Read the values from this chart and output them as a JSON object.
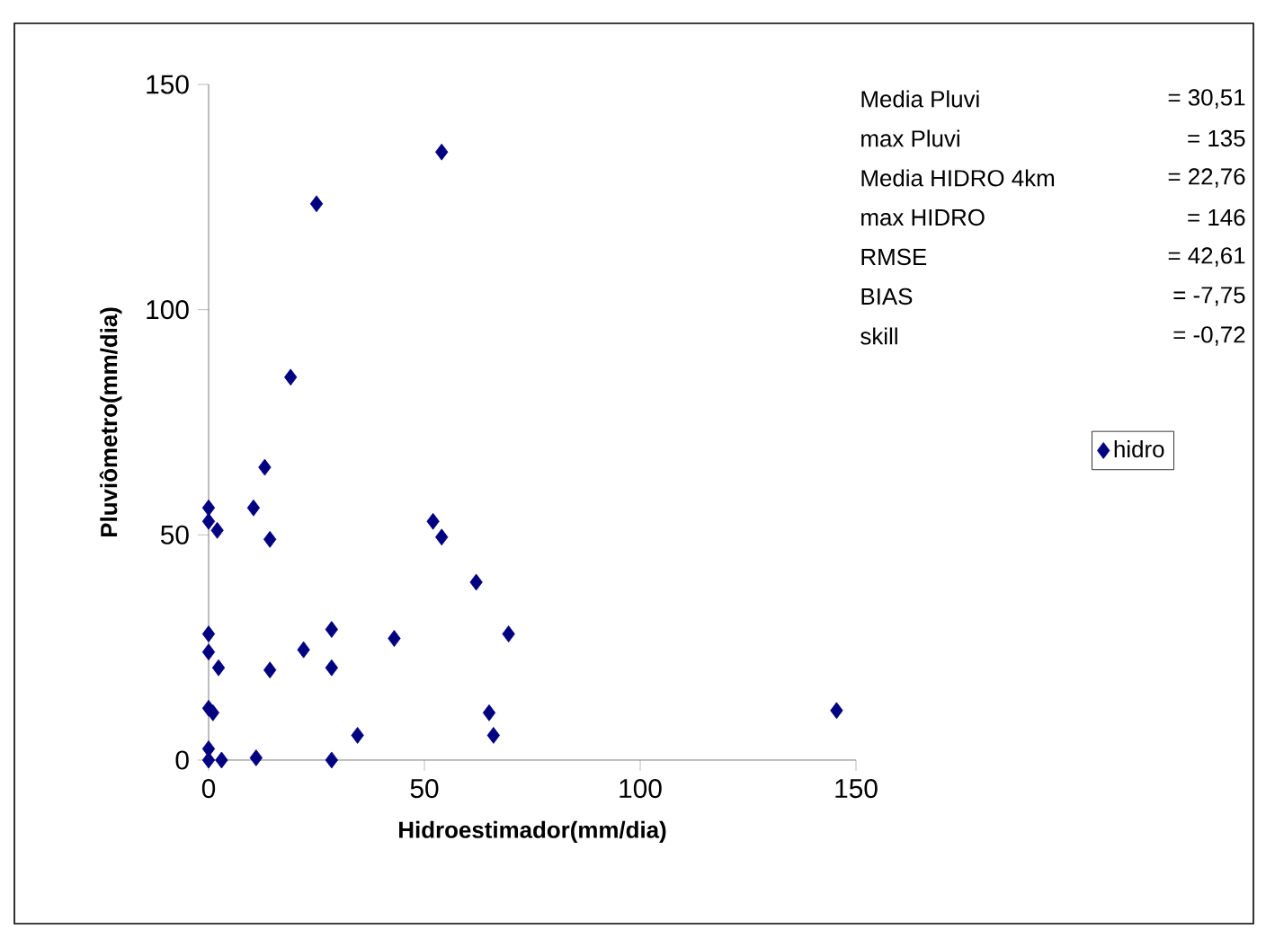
{
  "chart_data": {
    "type": "scatter",
    "xlabel": "Hidroestimador(mm/dia)",
    "ylabel": "Pluviômetro(mm/dia)",
    "x": [
      0,
      0,
      2,
      10.4,
      13,
      14.2,
      19,
      25,
      54,
      52,
      54,
      62,
      69.5,
      0,
      0,
      2.3,
      14.2,
      22,
      28.5,
      28.5,
      43,
      34.5,
      65,
      66,
      145.5,
      0,
      1,
      0,
      0,
      3,
      11,
      28.5
    ],
    "series": [
      {
        "name": "hidro",
        "color": "#000080",
        "values": [
          56,
          53,
          51,
          56,
          65,
          49,
          85,
          123.5,
          135,
          53,
          49.5,
          39.5,
          28,
          28,
          24,
          20.5,
          20,
          24.5,
          29,
          20.5,
          27,
          5.5,
          10.5,
          5.5,
          11,
          11.5,
          10.5,
          2.5,
          0,
          0,
          0.5,
          0
        ]
      }
    ],
    "xlim": [
      0,
      150
    ],
    "ylim": [
      0,
      150
    ],
    "xticks": [
      0,
      50,
      100,
      150
    ],
    "yticks": [
      0,
      50,
      100,
      150
    ],
    "marker": "diamond",
    "legend": "right",
    "annotations": [
      "Media Pluvi",
      "= 30,51",
      "max Pluvi",
      "= 135",
      "Media HIDRO 4km",
      "= 22,76",
      "max HIDRO",
      "= 146",
      "RMSE",
      "= 42,61",
      "BIAS",
      "= -7,75",
      "skill",
      "= -0,72"
    ]
  }
}
